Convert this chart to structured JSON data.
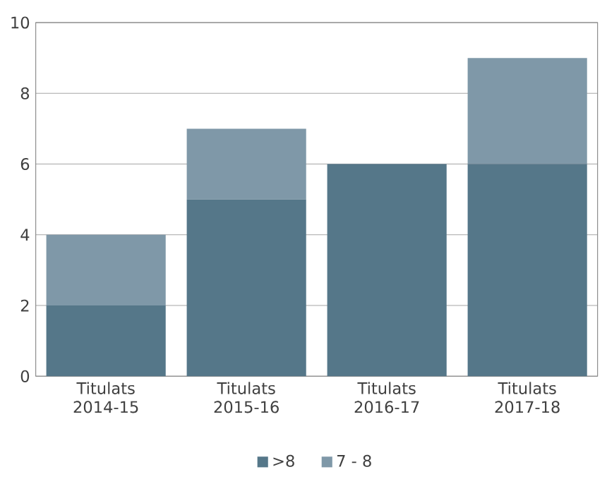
{
  "chart_data": {
    "type": "bar",
    "stacked": true,
    "categories": [
      "Titulats 2014-15",
      "Titulats 2015-16",
      "Titulats 2016-17",
      "Titulats 2017-18"
    ],
    "series": [
      {
        "name": ">8",
        "color": "#557789",
        "values": [
          2,
          5,
          6,
          6
        ]
      },
      {
        "name": "7 - 8",
        "color": "#7f98a8",
        "values": [
          2,
          2,
          0,
          3
        ]
      }
    ],
    "ylim": [
      0,
      10
    ],
    "yticks": [
      0,
      2,
      4,
      6,
      8,
      10
    ],
    "grid": "y",
    "legend": "bottom"
  }
}
